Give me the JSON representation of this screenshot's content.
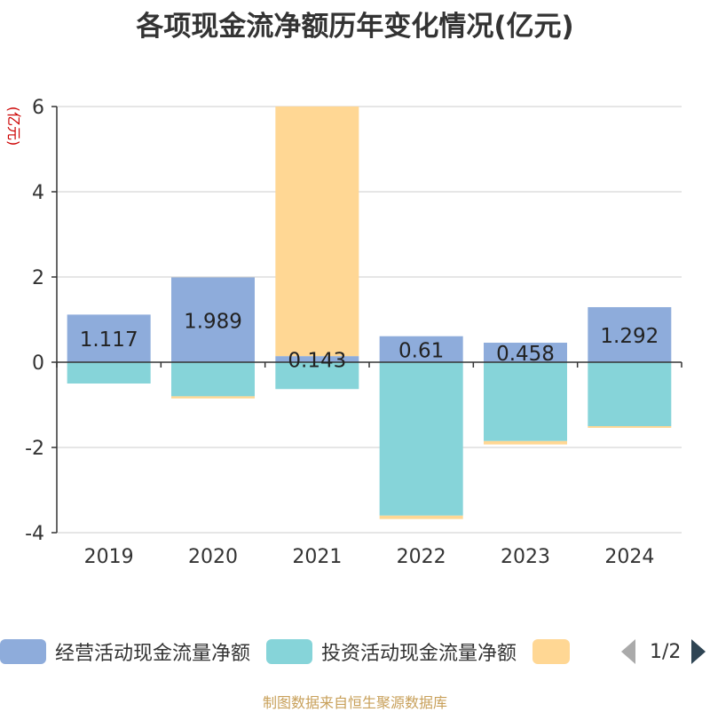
{
  "chart_data": {
    "type": "bar",
    "stacked": true,
    "title": "各项现金流净额历年变化情况(亿元)",
    "ylabel": "(亿元)",
    "categories": [
      "2019",
      "2020",
      "2021",
      "2022",
      "2023",
      "2024"
    ],
    "ylim": [
      -4,
      6
    ],
    "yticks": [
      -4,
      -2,
      0,
      2,
      4,
      6
    ],
    "grid": true,
    "series": [
      {
        "name": "经营活动现金流量净额",
        "color": "#8eacdb",
        "values": [
          1.117,
          1.989,
          0.143,
          0.61,
          0.458,
          1.292
        ],
        "labels": [
          "1.117",
          "1.989",
          "0.143",
          "0.61",
          "0.458",
          "1.292"
        ]
      },
      {
        "name": "投资活动现金流量净额",
        "color": "#86d4d9",
        "values": [
          -0.5,
          -0.8,
          -0.63,
          -3.6,
          -1.85,
          -1.5
        ]
      },
      {
        "name": "",
        "color": "#ffd794",
        "values": [
          0,
          -0.05,
          5.86,
          -0.08,
          -0.08,
          -0.04
        ]
      }
    ],
    "legend": {
      "position": "bottom",
      "page": "1/2"
    }
  },
  "source_note": "制图数据来自恒生聚源数据库"
}
